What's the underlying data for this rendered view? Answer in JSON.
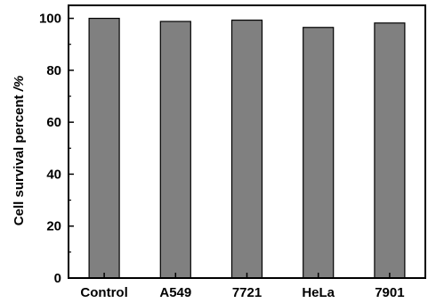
{
  "chart_data": {
    "type": "bar",
    "categories": [
      "Control",
      "A549",
      "7721",
      "HeLa",
      "7901"
    ],
    "values": [
      100,
      98.8,
      99.3,
      96.5,
      98.2
    ],
    "ylabel_main": "Cell survival percent ",
    "ylabel_unit": "/%",
    "ylim": [
      0,
      105
    ],
    "yticks": [
      0,
      20,
      40,
      60,
      80,
      100
    ],
    "grid": false,
    "bar_color": "#808080",
    "bar_edge_color": "#000000"
  }
}
